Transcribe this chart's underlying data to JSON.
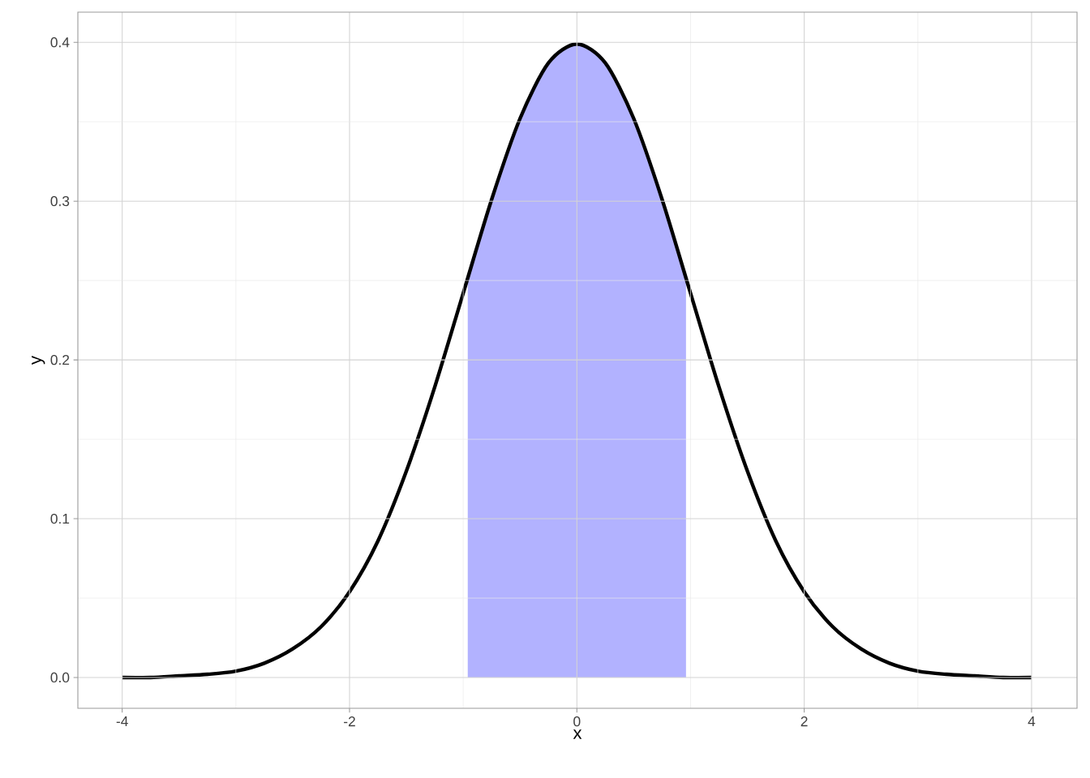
{
  "chart_data": {
    "type": "line",
    "xlabel": "x",
    "ylabel": "y",
    "x": [
      -4,
      -3.75,
      -3.5,
      -3.25,
      -3,
      -2.75,
      -2.5,
      -2.25,
      -2,
      -1.75,
      -1.5,
      -1.25,
      -1,
      -0.75,
      -0.5,
      -0.25,
      0,
      0.25,
      0.5,
      0.75,
      1,
      1.25,
      1.5,
      1.75,
      2,
      2.25,
      2.5,
      2.75,
      3,
      3.25,
      3.5,
      3.75,
      4
    ],
    "series": [
      {
        "type": "area",
        "color": "#b2b2ff",
        "x": [
          -0.96,
          -0.75,
          -0.5,
          -0.25,
          0,
          0.25,
          0.5,
          0.75,
          0.96
        ],
        "values": [
          0.252,
          0.301,
          0.352,
          0.387,
          0.399,
          0.387,
          0.352,
          0.301,
          0.252
        ]
      },
      {
        "color": "#000000",
        "values": [
          0.0,
          0.0,
          0.001,
          0.002,
          0.004,
          0.009,
          0.018,
          0.032,
          0.054,
          0.086,
          0.13,
          0.183,
          0.242,
          0.301,
          0.352,
          0.387,
          0.399,
          0.387,
          0.352,
          0.301,
          0.242,
          0.183,
          0.13,
          0.086,
          0.054,
          0.032,
          0.018,
          0.009,
          0.004,
          0.002,
          0.001,
          0.0,
          0.0
        ]
      }
    ],
    "xlim": [
      -4.39,
      4.4
    ],
    "ylim": [
      -0.0194,
      0.419
    ],
    "xticks": [
      -4,
      -2,
      0,
      2,
      4
    ],
    "yticks": [
      {
        "value": 0,
        "label": "0.0"
      },
      {
        "value": 0.1,
        "label": "0.1"
      },
      {
        "value": 0.2,
        "label": "0.2"
      },
      {
        "value": 0.3,
        "label": "0.3"
      },
      {
        "value": 0.4,
        "label": "0.4"
      }
    ],
    "grid": true
  }
}
